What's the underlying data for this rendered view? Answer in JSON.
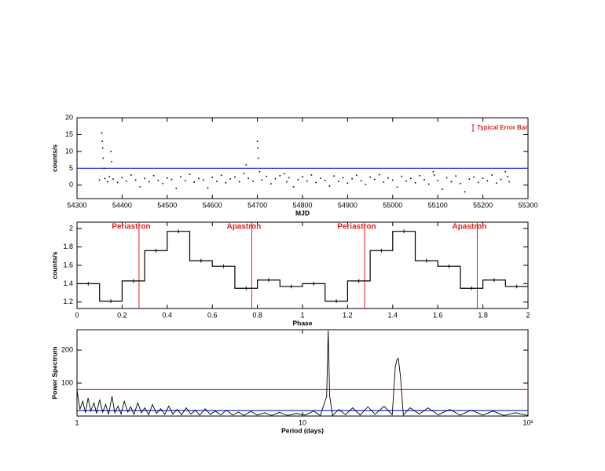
{
  "chart_data": [
    {
      "type": "scatter",
      "xlabel": "MJD",
      "ylabel": "counts/s",
      "annotation": "Typical Error Bar",
      "xlim": [
        54300,
        55300
      ],
      "ylim": [
        -4,
        20
      ],
      "xticks": [
        54300,
        54400,
        54500,
        54600,
        54700,
        54800,
        54900,
        55000,
        55100,
        55200,
        55300
      ],
      "yticks": [
        0,
        5,
        10,
        15,
        20
      ],
      "color": "#000000",
      "hlines": [
        {
          "value": 5,
          "color": "#2030d0"
        }
      ],
      "x": [
        54350,
        54355,
        54356,
        54357,
        54358,
        54360,
        54362,
        54368,
        54372,
        54375,
        54377,
        54380,
        54390,
        54400,
        54410,
        54420,
        54430,
        54440,
        54450,
        54460,
        54470,
        54480,
        54490,
        54500,
        54510,
        54520,
        54530,
        54540,
        54550,
        54560,
        54570,
        54580,
        54590,
        54600,
        54610,
        54620,
        54630,
        54640,
        54650,
        54660,
        54670,
        54675,
        54680,
        54690,
        54700,
        54701,
        54702,
        54705,
        54710,
        54720,
        54730,
        54740,
        54750,
        54760,
        54765,
        54770,
        54780,
        54790,
        54800,
        54810,
        54820,
        54830,
        54840,
        54850,
        54860,
        54870,
        54880,
        54890,
        54900,
        54910,
        54920,
        54930,
        54940,
        54950,
        54960,
        54970,
        54980,
        54990,
        55000,
        55010,
        55020,
        55030,
        55040,
        55050,
        55060,
        55070,
        55080,
        55090,
        55092,
        55100,
        55110,
        55120,
        55130,
        55140,
        55150,
        55160,
        55170,
        55180,
        55190,
        55200,
        55210,
        55220,
        55230,
        55240,
        55250,
        55255,
        55258
      ],
      "values": [
        1.5,
        15.5,
        13,
        11,
        8,
        5,
        2,
        1,
        2.5,
        10,
        7,
        1.8,
        0.8,
        2.2,
        1.2,
        3,
        1.5,
        -0.5,
        2,
        1,
        2.8,
        1.4,
        0.5,
        2.1,
        1.7,
        -1,
        2.5,
        1.3,
        3.2,
        0.9,
        2,
        1.5,
        -0.8,
        2.3,
        1.1,
        2.9,
        0.7,
        1.8,
        2.4,
        1,
        3.5,
        6,
        2,
        1.2,
        13,
        11,
        8,
        4,
        1.5,
        2.6,
        0.4,
        1.9,
        2.8,
        3.4,
        1,
        2.2,
        -0.5,
        1.6,
        2.5,
        1.2,
        3,
        0.8,
        2,
        1.4,
        -0.3,
        2.7,
        1.1,
        2.2,
        0.6,
        1.9,
        2.9,
        1.3,
        0.2,
        2.4,
        1.7,
        3.1,
        0.9,
        2.1,
        1.5,
        -0.6,
        2.6,
        1.2,
        2,
        0.7,
        2.8,
        1.6,
        0.3,
        4,
        3,
        1.4,
        -1.2,
        2.2,
        1,
        2.7,
        0.5,
        -2,
        1.8,
        2.4,
        0.8,
        2,
        1.3,
        3,
        0.6,
        1.7,
        4,
        2.5,
        1
      ]
    },
    {
      "type": "step",
      "xlabel": "Phase",
      "ylabel": "counts/s",
      "xlim": [
        0,
        2
      ],
      "ylim": [
        1.13,
        2.07
      ],
      "xticks": [
        0,
        0.2,
        0.4,
        0.6,
        0.8,
        1,
        1.2,
        1.4,
        1.6,
        1.8,
        2
      ],
      "yticks": [
        1.2,
        1.4,
        1.6,
        1.8,
        2
      ],
      "color": "#000000",
      "vlines": [
        {
          "value": 0.275,
          "label": "Periastron",
          "color": "#e02020"
        },
        {
          "value": 0.775,
          "label": "Apastron",
          "color": "#e02020"
        },
        {
          "value": 1.275,
          "label": "Periastron",
          "color": "#e02020"
        },
        {
          "value": 1.775,
          "label": "Apastron",
          "color": "#e02020"
        }
      ],
      "x": [
        0.05,
        0.15,
        0.25,
        0.35,
        0.45,
        0.55,
        0.65,
        0.75,
        0.85,
        0.95,
        1.05,
        1.15,
        1.25,
        1.35,
        1.45,
        1.55,
        1.65,
        1.75,
        1.85,
        1.95
      ],
      "values": [
        1.4,
        1.21,
        1.43,
        1.76,
        1.97,
        1.65,
        1.59,
        1.35,
        1.44,
        1.37,
        1.4,
        1.21,
        1.43,
        1.76,
        1.97,
        1.65,
        1.59,
        1.35,
        1.44,
        1.37
      ],
      "errors": [
        0.02,
        0.02,
        0.02,
        0.02,
        0.02,
        0.02,
        0.02,
        0.02,
        0.02,
        0.02,
        0.02,
        0.02,
        0.02,
        0.02,
        0.02,
        0.02,
        0.02,
        0.02,
        0.02,
        0.02
      ]
    },
    {
      "type": "line",
      "xlabel": "Period (days)",
      "ylabel": "Power Spectrum",
      "xscale": "log",
      "xlim": [
        1,
        100
      ],
      "ylim": [
        0,
        262
      ],
      "xticks": [
        1,
        10,
        {
          "value": 100,
          "label": "10²"
        }
      ],
      "yticks": [
        100,
        200
      ],
      "color": "#000000",
      "hlines": [
        {
          "value": 80,
          "color": "#e02020"
        },
        {
          "value": 17,
          "color": "#2030d0"
        }
      ],
      "x": [
        1.0,
        1.03,
        1.06,
        1.09,
        1.12,
        1.15,
        1.19,
        1.22,
        1.26,
        1.3,
        1.34,
        1.38,
        1.43,
        1.47,
        1.52,
        1.57,
        1.62,
        1.68,
        1.73,
        1.79,
        1.86,
        1.93,
        2.0,
        2.08,
        2.16,
        2.25,
        2.35,
        2.45,
        2.55,
        2.66,
        2.78,
        2.91,
        3.05,
        3.2,
        3.35,
        3.5,
        3.7,
        3.9,
        4.1,
        4.35,
        4.6,
        4.9,
        5.2,
        5.5,
        5.9,
        6.3,
        6.8,
        7.3,
        7.9,
        8.6,
        9.4,
        10.3,
        11.2,
        12.0,
        12.8,
        13.0,
        13.2,
        13.6,
        14.5,
        15.5,
        16.7,
        18.0,
        19.5,
        21.0,
        23.0,
        25.0,
        25.8,
        26.2,
        26.6,
        27.2,
        28.0,
        30,
        33,
        36,
        40,
        45,
        50,
        56,
        63,
        70,
        78,
        88,
        100
      ],
      "values": [
        80,
        20,
        45,
        10,
        55,
        15,
        40,
        8,
        50,
        12,
        35,
        5,
        60,
        10,
        30,
        6,
        45,
        12,
        28,
        5,
        40,
        10,
        25,
        4,
        35,
        8,
        22,
        5,
        30,
        6,
        20,
        4,
        25,
        6,
        18,
        3,
        22,
        5,
        15,
        4,
        18,
        3,
        12,
        2,
        14,
        3,
        10,
        2,
        11,
        2,
        8,
        3,
        15,
        2,
        60,
        260,
        60,
        2,
        20,
        4,
        25,
        3,
        28,
        5,
        30,
        4,
        150,
        170,
        175,
        120,
        3,
        25,
        6,
        25,
        4,
        20,
        3,
        18,
        3,
        15,
        2,
        10,
        2
      ]
    }
  ]
}
